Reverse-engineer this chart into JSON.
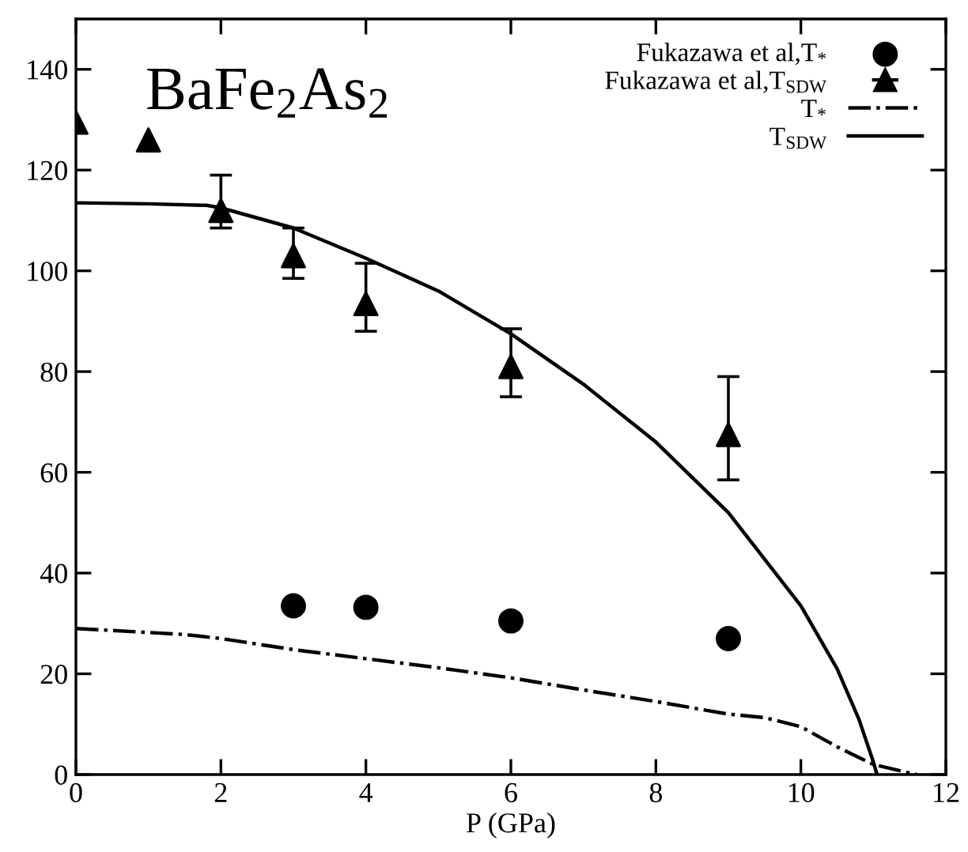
{
  "chart_data": {
    "type": "scatter",
    "xlabel": "P (GPa)",
    "xlim": [
      0,
      12
    ],
    "ylim": [
      0,
      150
    ],
    "xticks": [
      0,
      2,
      4,
      6,
      8,
      10,
      12
    ],
    "yticks": [
      0,
      20,
      40,
      60,
      80,
      100,
      120,
      140
    ],
    "grid": false,
    "legend": "top right",
    "annotations": [
      "BaFe$_{2}$As$_{2}$"
    ],
    "series": [
      {
        "name": "Fukazawa et al,T$_{*}$",
        "marker": "circle",
        "color": "#000000",
        "x": [
          3,
          4,
          6,
          9
        ],
        "values": [
          33.5,
          33.2,
          30.5,
          27
        ]
      },
      {
        "name": "Fukazawa et al,T$_{SDW}$",
        "marker": "triangle",
        "color": "#000000",
        "x": [
          0,
          1,
          2,
          3,
          4,
          6,
          9
        ],
        "values": [
          129.5,
          126,
          112,
          103,
          93.5,
          81,
          67.5
        ],
        "errors": [
          null,
          null,
          [
            108.5,
            119
          ],
          [
            98.5,
            108.5
          ],
          [
            88,
            101.5
          ],
          [
            75,
            88.5
          ],
          [
            58.5,
            79
          ]
        ]
      },
      {
        "name": "T$_{*}$",
        "type": "line",
        "line_style": "dashdot",
        "color": "#000000",
        "x": [
          0,
          1.5,
          2,
          3,
          4,
          5,
          6,
          7,
          8,
          9,
          9.5,
          10,
          10.5,
          11,
          11.5,
          11.6
        ],
        "values": [
          29,
          27.8,
          27,
          24.8,
          23,
          21.2,
          19.2,
          16.8,
          14.5,
          12,
          11.3,
          9.5,
          5.5,
          2,
          0.3,
          0
        ]
      },
      {
        "name": "T$_{SDW}$",
        "type": "line",
        "line_style": "solid",
        "color": "#000000",
        "x": [
          0,
          1,
          1.8,
          2,
          3,
          4,
          5,
          6,
          7,
          8,
          9,
          10,
          10.5,
          10.8,
          11,
          11.05
        ],
        "values": [
          113.5,
          113.3,
          113,
          112.5,
          108.5,
          102.5,
          96,
          87.5,
          77.5,
          66,
          52,
          33.5,
          21,
          11,
          2.5,
          0
        ]
      }
    ]
  }
}
